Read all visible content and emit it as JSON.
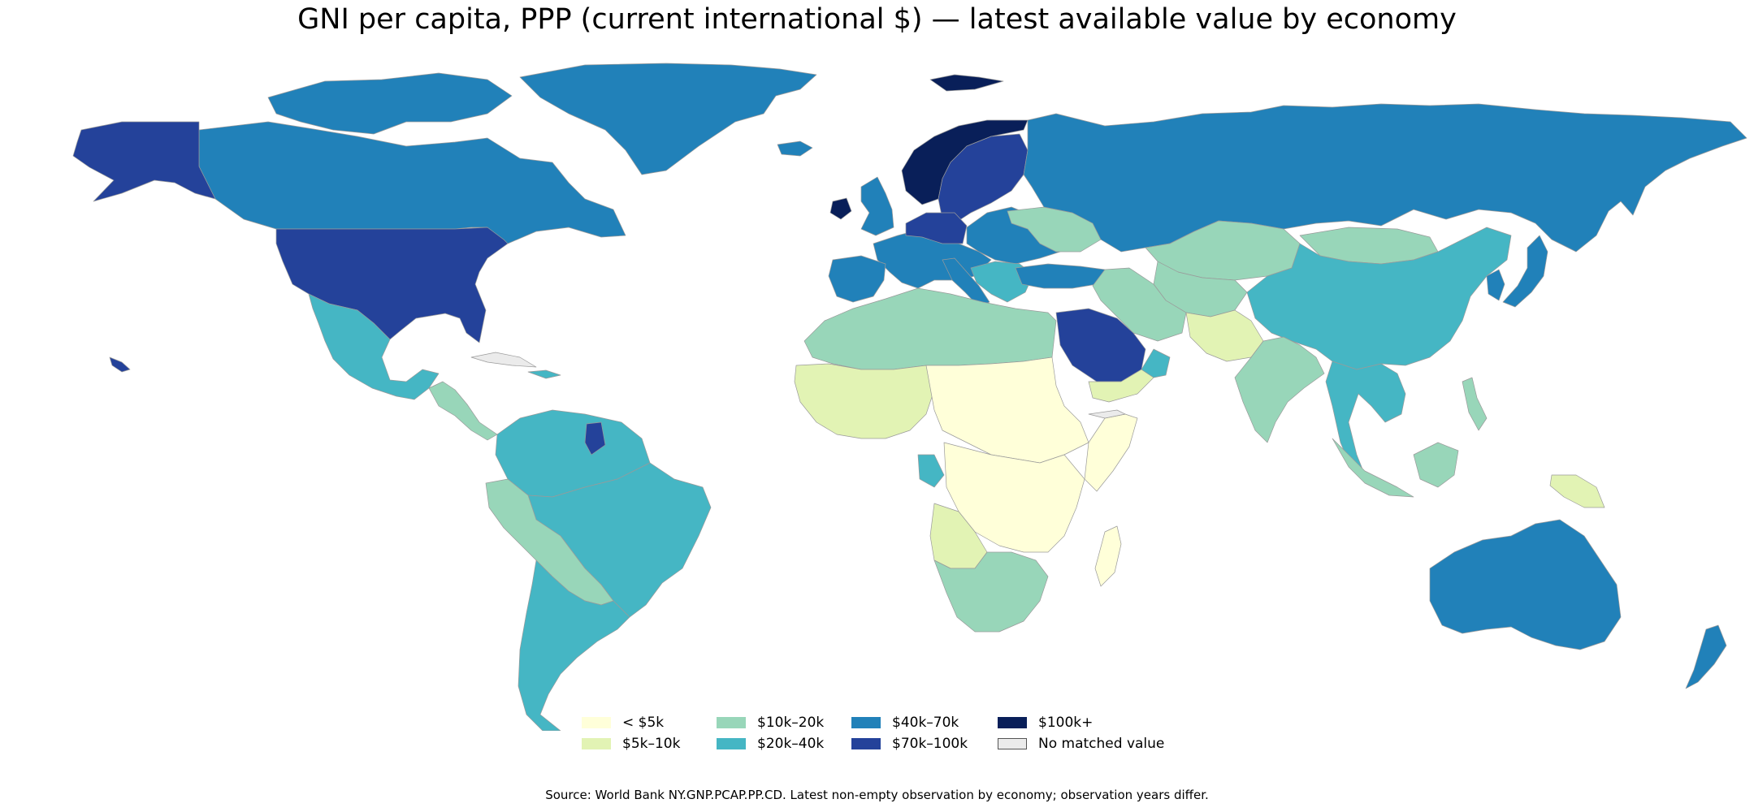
{
  "title": "GNI per capita, PPP (current international $) — latest available value by economy",
  "source": "Source: World Bank NY.GNP.PCAP.PP.CD. Latest non-empty observation by economy; observation years differ.",
  "colors": {
    "lt5k": "#ffffd9",
    "c5_10k": "#e2f3b4",
    "c10_20k": "#98d6b9",
    "c20_40k": "#45b6c4",
    "c40_70k": "#2181b9",
    "c70_100k": "#24429a",
    "c100kplus": "#091f59",
    "nomatch": "#ebebeb"
  },
  "legend": [
    {
      "label": "< $5k",
      "color": "#ffffd9"
    },
    {
      "label": "$5k–10k",
      "color": "#e2f3b4"
    },
    {
      "label": "$10k–20k",
      "color": "#98d6b9"
    },
    {
      "label": "$20k–40k",
      "color": "#45b6c4"
    },
    {
      "label": "$40k–70k",
      "color": "#2181b9"
    },
    {
      "label": "$70k–100k",
      "color": "#24429a"
    },
    {
      "label": "$100k+",
      "color": "#091f59"
    },
    {
      "label": "No matched value",
      "color": "#ebebeb"
    }
  ]
}
